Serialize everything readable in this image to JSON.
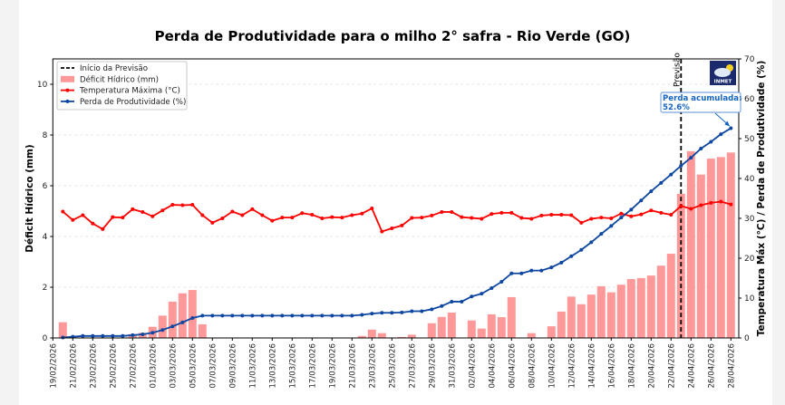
{
  "chart_data": {
    "type": "bar+line",
    "title": "Perda de Produtividade para o milho 2° safra - Rio Verde (GO)",
    "ylabel_left": "Déficit Hídrico (mm)",
    "ylabel_right": "Temperatura Máx (°C) / Perda de Produtividade (%)",
    "ylim_left": [
      0,
      11
    ],
    "yticks_left": [
      "0",
      "2",
      "4",
      "6",
      "8",
      "10"
    ],
    "ylim_right": [
      0,
      70
    ],
    "yticks_right": [
      "0",
      "10",
      "20",
      "30",
      "40",
      "50",
      "60",
      "70"
    ],
    "grid": "horizontal dashed (left axis)",
    "legend_position": "top-left",
    "xticks": [
      "19/02/2026",
      "21/02/2026",
      "23/02/2026",
      "25/02/2026",
      "27/02/2026",
      "01/03/2026",
      "03/03/2026",
      "05/03/2026",
      "07/03/2026",
      "09/03/2026",
      "11/03/2026",
      "13/03/2026",
      "15/03/2026",
      "17/03/2026",
      "19/03/2026",
      "21/03/2026",
      "23/03/2026",
      "25/03/2026",
      "27/03/2026",
      "29/03/2026",
      "31/03/2026",
      "02/04/2026",
      "04/04/2026",
      "06/04/2026",
      "08/04/2026",
      "10/04/2026",
      "12/04/2026",
      "14/04/2026",
      "16/04/2026",
      "18/04/2026",
      "20/04/2026",
      "22/04/2026",
      "24/04/2026",
      "26/04/2026",
      "28/04/2026"
    ],
    "dates": [
      "20/02/2026",
      "21/02/2026",
      "22/02/2026",
      "23/02/2026",
      "24/02/2026",
      "25/02/2026",
      "26/02/2026",
      "27/02/2026",
      "28/02/2026",
      "01/03/2026",
      "02/03/2026",
      "03/03/2026",
      "04/03/2026",
      "05/03/2026",
      "06/03/2026",
      "07/03/2026",
      "08/03/2026",
      "09/03/2026",
      "10/03/2026",
      "11/03/2026",
      "12/03/2026",
      "13/03/2026",
      "14/03/2026",
      "15/03/2026",
      "16/03/2026",
      "17/03/2026",
      "18/03/2026",
      "19/03/2026",
      "20/03/2026",
      "21/03/2026",
      "22/03/2026",
      "23/03/2026",
      "24/03/2026",
      "25/03/2026",
      "26/03/2026",
      "27/03/2026",
      "28/03/2026",
      "29/03/2026",
      "30/03/2026",
      "31/03/2026",
      "01/04/2026",
      "02/04/2026",
      "03/04/2026",
      "04/04/2026",
      "05/04/2026",
      "06/04/2026",
      "07/04/2026",
      "08/04/2026",
      "09/04/2026",
      "10/04/2026",
      "11/04/2026",
      "12/04/2026",
      "13/04/2026",
      "14/04/2026",
      "15/04/2026",
      "16/04/2026",
      "17/04/2026",
      "18/04/2026",
      "19/04/2026",
      "20/04/2026",
      "21/04/2026",
      "22/04/2026",
      "23/04/2026",
      "24/04/2026",
      "25/04/2026",
      "26/04/2026",
      "27/04/2026",
      "28/04/2026"
    ],
    "series": [
      {
        "name": "Déficit Hídrico (mm)",
        "type": "bar",
        "axis": "left",
        "color": "#ff9999",
        "values": [
          0.62,
          0,
          0,
          0,
          0,
          0,
          0,
          0.15,
          0.2,
          0.44,
          0.88,
          1.43,
          1.76,
          1.89,
          0.54,
          0,
          0,
          0,
          0,
          0.02,
          0,
          0,
          0,
          0.02,
          0,
          0,
          0,
          0,
          0,
          0,
          0.08,
          0.33,
          0.19,
          0,
          0.04,
          0.13,
          0,
          0.58,
          0.83,
          1.0,
          0,
          0.69,
          0.37,
          0.93,
          0.82,
          1.61,
          0,
          0.19,
          0,
          0.46,
          1.04,
          1.63,
          1.33,
          1.71,
          2.04,
          1.8,
          2.1,
          2.32,
          2.36,
          2.46,
          2.85,
          3.32,
          5.68,
          7.36,
          6.44,
          7.07,
          7.13,
          7.31
        ]
      },
      {
        "name": "Temperatura Máxima (°C)",
        "type": "line",
        "axis": "right",
        "color": "#ff0000",
        "values": [
          31.7,
          29.6,
          30.8,
          28.7,
          27.3,
          30.3,
          30.2,
          32.3,
          31.6,
          30.5,
          32.0,
          33.4,
          33.3,
          33.4,
          30.8,
          28.9,
          30.0,
          31.7,
          30.8,
          32.3,
          30.8,
          29.4,
          30.2,
          30.2,
          31.3,
          30.9,
          30.0,
          30.3,
          30.2,
          30.8,
          31.2,
          32.5,
          26.7,
          27.5,
          28.2,
          30.1,
          30.2,
          30.7,
          31.6,
          31.6,
          30.3,
          30.1,
          29.9,
          31.1,
          31.4,
          31.4,
          30.1,
          29.9,
          30.7,
          30.9,
          30.9,
          30.8,
          28.9,
          29.9,
          30.2,
          30.0,
          31.2,
          30.5,
          31.0,
          32.0,
          31.4,
          30.9,
          33.1,
          32.4,
          33.3,
          33.9,
          34.2,
          33.5
        ]
      },
      {
        "name": "Perda de Produtividade (%)",
        "type": "line",
        "axis": "right",
        "color": "#0d47a1",
        "values": [
          0.1,
          0.3,
          0.5,
          0.5,
          0.5,
          0.5,
          0.5,
          0.7,
          0.9,
          1.3,
          2.0,
          2.9,
          3.9,
          5.0,
          5.6,
          5.6,
          5.6,
          5.6,
          5.6,
          5.6,
          5.6,
          5.6,
          5.6,
          5.6,
          5.6,
          5.6,
          5.6,
          5.6,
          5.6,
          5.6,
          5.8,
          6.1,
          6.3,
          6.3,
          6.4,
          6.7,
          6.7,
          7.2,
          8.0,
          9.1,
          9.1,
          10.4,
          11.1,
          12.5,
          14.1,
          16.2,
          16.2,
          16.9,
          16.9,
          17.7,
          18.9,
          20.5,
          22.1,
          24.0,
          26.1,
          28.1,
          30.2,
          32.2,
          34.5,
          36.8,
          38.9,
          41.0,
          43.2,
          45.2,
          47.5,
          49.2,
          51.1,
          52.6
        ]
      }
    ],
    "forecast": {
      "legend_label": "Início da Previsão",
      "date": "23/04/2026",
      "text": "Previsão",
      "color": "#000000"
    },
    "annotation": {
      "line1": "Perda acumulada:",
      "line2": "52.6%",
      "color": "#1565c0"
    }
  },
  "logo": {
    "text": "INMET",
    "icon": "inmet-cloud-sun-icon",
    "bg": "#1a2a6c"
  }
}
